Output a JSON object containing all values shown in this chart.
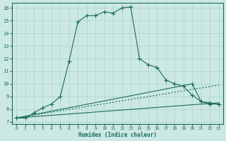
{
  "xlabel": "Humidex (Indice chaleur)",
  "xlim": [
    -0.5,
    23.5
  ],
  "ylim": [
    6.8,
    16.4
  ],
  "yticks": [
    7,
    8,
    9,
    10,
    11,
    12,
    13,
    14,
    15,
    16
  ],
  "xticks": [
    0,
    1,
    2,
    3,
    4,
    5,
    6,
    7,
    8,
    9,
    10,
    11,
    12,
    13,
    14,
    15,
    16,
    17,
    18,
    19,
    20,
    21,
    22,
    23
  ],
  "background_color": "#cce8e4",
  "grid_color": "#aad4cc",
  "line_color": "#1a6b5a",
  "line1_x": [
    0,
    1,
    2,
    3,
    4,
    5,
    6,
    7,
    8,
    9,
    10,
    11,
    12,
    13,
    14,
    15,
    16,
    17,
    18,
    19,
    20,
    21,
    22,
    23
  ],
  "line1_y": [
    7.3,
    7.3,
    7.7,
    8.1,
    8.4,
    9.0,
    11.8,
    14.9,
    15.4,
    15.4,
    15.7,
    15.6,
    16.0,
    16.1,
    12.0,
    11.5,
    11.3,
    10.3,
    10.0,
    9.8,
    9.1,
    8.6,
    8.5,
    8.4
  ],
  "line2_x": [
    0,
    23
  ],
  "line2_y": [
    7.3,
    9.9
  ],
  "line3_x": [
    0,
    20,
    21,
    22,
    23
  ],
  "line3_y": [
    7.3,
    10.0,
    8.6,
    8.4,
    8.4
  ],
  "line4_x": [
    0,
    23
  ],
  "line4_y": [
    7.3,
    8.5
  ]
}
